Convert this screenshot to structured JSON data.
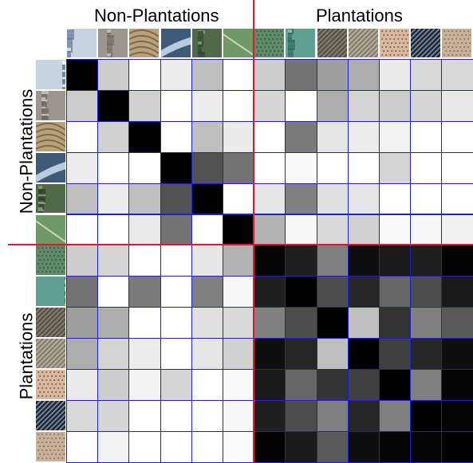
{
  "headers": {
    "top_left": "Non-Plantations",
    "top_right": "Plantations",
    "left_top": "Non-Plantations",
    "left_bottom": "Plantations"
  },
  "colors": {
    "divider": "#d81b2a",
    "grid_line": "#2020c8"
  },
  "thumbnails": [
    {
      "id": "np1",
      "group": "Non-Plantations",
      "icon": "aerial-urban-snow-thumbnail",
      "colors": [
        "#c8d4e0",
        "#6a7f98",
        "#eef2f6"
      ]
    },
    {
      "id": "np2",
      "group": "Non-Plantations",
      "icon": "aerial-rock-terrain-thumbnail",
      "colors": [
        "#9b958c",
        "#6f6a63",
        "#cbc6bf"
      ]
    },
    {
      "id": "np3",
      "group": "Non-Plantations",
      "icon": "aerial-contour-field-thumbnail",
      "colors": [
        "#b8a27a",
        "#7e6a48",
        "#e0d2b0"
      ]
    },
    {
      "id": "np4",
      "group": "Non-Plantations",
      "icon": "aerial-river-forest-thumbnail",
      "colors": [
        "#3f5a78",
        "#1f3352",
        "#b9cbe0"
      ]
    },
    {
      "id": "np5",
      "group": "Non-Plantations",
      "icon": "aerial-forest-thumbnail",
      "colors": [
        "#4f6a48",
        "#2f4330",
        "#8fa07a"
      ]
    },
    {
      "id": "np6",
      "group": "Non-Plantations",
      "icon": "aerial-grass-road-thumbnail",
      "colors": [
        "#6f9a68",
        "#3f6a40",
        "#c8d8b8"
      ]
    },
    {
      "id": "p1",
      "group": "Plantations",
      "icon": "aerial-dotted-plantation-thumbnail",
      "colors": [
        "#5f8a6a",
        "#2f5a3a",
        "#9fc0a0"
      ]
    },
    {
      "id": "p2",
      "group": "Plantations",
      "icon": "aerial-green-plantation-thumbnail",
      "colors": [
        "#5fa090",
        "#2f6a5a",
        "#a0d0c0"
      ]
    },
    {
      "id": "p3",
      "group": "Plantations",
      "icon": "aerial-dark-rows-thumbnail",
      "colors": [
        "#5a5448",
        "#2f2a22",
        "#8f8878"
      ]
    },
    {
      "id": "p4",
      "group": "Plantations",
      "icon": "aerial-brown-rows-thumbnail",
      "colors": [
        "#8a8070",
        "#4f4538",
        "#c0b8a8"
      ]
    },
    {
      "id": "p5",
      "group": "Plantations",
      "icon": "aerial-sand-dots-thumbnail",
      "colors": [
        "#d8b8a0",
        "#7a5a48",
        "#efd8c8"
      ]
    },
    {
      "id": "p6",
      "group": "Plantations",
      "icon": "aerial-black-stripes-thumbnail",
      "colors": [
        "#1f2a3a",
        "#0a0f18",
        "#8a98a8"
      ]
    },
    {
      "id": "p7",
      "group": "Plantations",
      "icon": "aerial-beige-dots-thumbnail",
      "colors": [
        "#c8b09a",
        "#8a7058",
        "#e8d8c8"
      ]
    }
  ],
  "chart_data": {
    "type": "heatmap",
    "row_labels": [
      "np1",
      "np2",
      "np3",
      "np4",
      "np5",
      "np6",
      "p1",
      "p2",
      "p3",
      "p4",
      "p5",
      "p6",
      "p7"
    ],
    "col_labels": [
      "np1",
      "np2",
      "np3",
      "np4",
      "np5",
      "np6",
      "p1",
      "p2",
      "p3",
      "p4",
      "p5",
      "p6",
      "p7"
    ],
    "values": [
      [
        0.0,
        0.8,
        1.0,
        0.93,
        0.75,
        1.0,
        0.8,
        0.45,
        0.62,
        0.68,
        0.92,
        0.85,
        0.85
      ],
      [
        0.8,
        0.0,
        0.82,
        1.0,
        0.93,
        1.0,
        0.84,
        1.0,
        0.68,
        0.83,
        0.8,
        0.84,
        0.91
      ],
      [
        1.0,
        0.82,
        0.0,
        1.0,
        0.75,
        0.92,
        1.0,
        0.48,
        0.9,
        0.93,
        0.95,
        1.0,
        1.0
      ],
      [
        0.93,
        1.0,
        1.0,
        0.0,
        0.32,
        0.45,
        1.0,
        0.98,
        1.0,
        1.0,
        0.83,
        1.0,
        1.0
      ],
      [
        0.75,
        0.93,
        0.75,
        0.32,
        0.0,
        1.0,
        0.9,
        0.5,
        0.88,
        0.9,
        1.0,
        1.0,
        1.0
      ],
      [
        1.0,
        1.0,
        0.92,
        0.45,
        1.0,
        0.0,
        0.7,
        0.97,
        0.85,
        0.82,
        0.98,
        0.97,
        0.94
      ],
      [
        0.8,
        0.84,
        1.0,
        1.0,
        0.9,
        0.7,
        0.02,
        0.12,
        0.5,
        0.06,
        0.1,
        0.12,
        0.01
      ],
      [
        0.45,
        1.0,
        0.48,
        1.0,
        0.5,
        0.97,
        0.12,
        0.0,
        0.3,
        0.15,
        0.4,
        0.3,
        0.1
      ],
      [
        0.62,
        0.68,
        1.0,
        1.0,
        0.88,
        0.85,
        0.5,
        0.3,
        0.0,
        0.75,
        0.2,
        0.5,
        0.35
      ],
      [
        0.68,
        0.83,
        0.93,
        1.0,
        0.9,
        0.82,
        0.06,
        0.15,
        0.75,
        0.0,
        0.25,
        0.15,
        0.06
      ],
      [
        0.92,
        0.8,
        0.95,
        0.83,
        1.0,
        0.98,
        0.1,
        0.4,
        0.2,
        0.25,
        0.0,
        0.5,
        0.02
      ],
      [
        0.85,
        0.84,
        1.0,
        1.0,
        1.0,
        0.97,
        0.12,
        0.3,
        0.5,
        0.15,
        0.5,
        0.0,
        0.02
      ],
      [
        1.0,
        0.95,
        1.0,
        1.0,
        1.0,
        0.99,
        0.01,
        0.1,
        0.35,
        0.06,
        0.02,
        0.02,
        0.0
      ]
    ],
    "colormap": "grayscale (0 = black, 1 = white)",
    "group_split_index": 6,
    "groups": [
      "Non-Plantations",
      "Plantations"
    ]
  }
}
